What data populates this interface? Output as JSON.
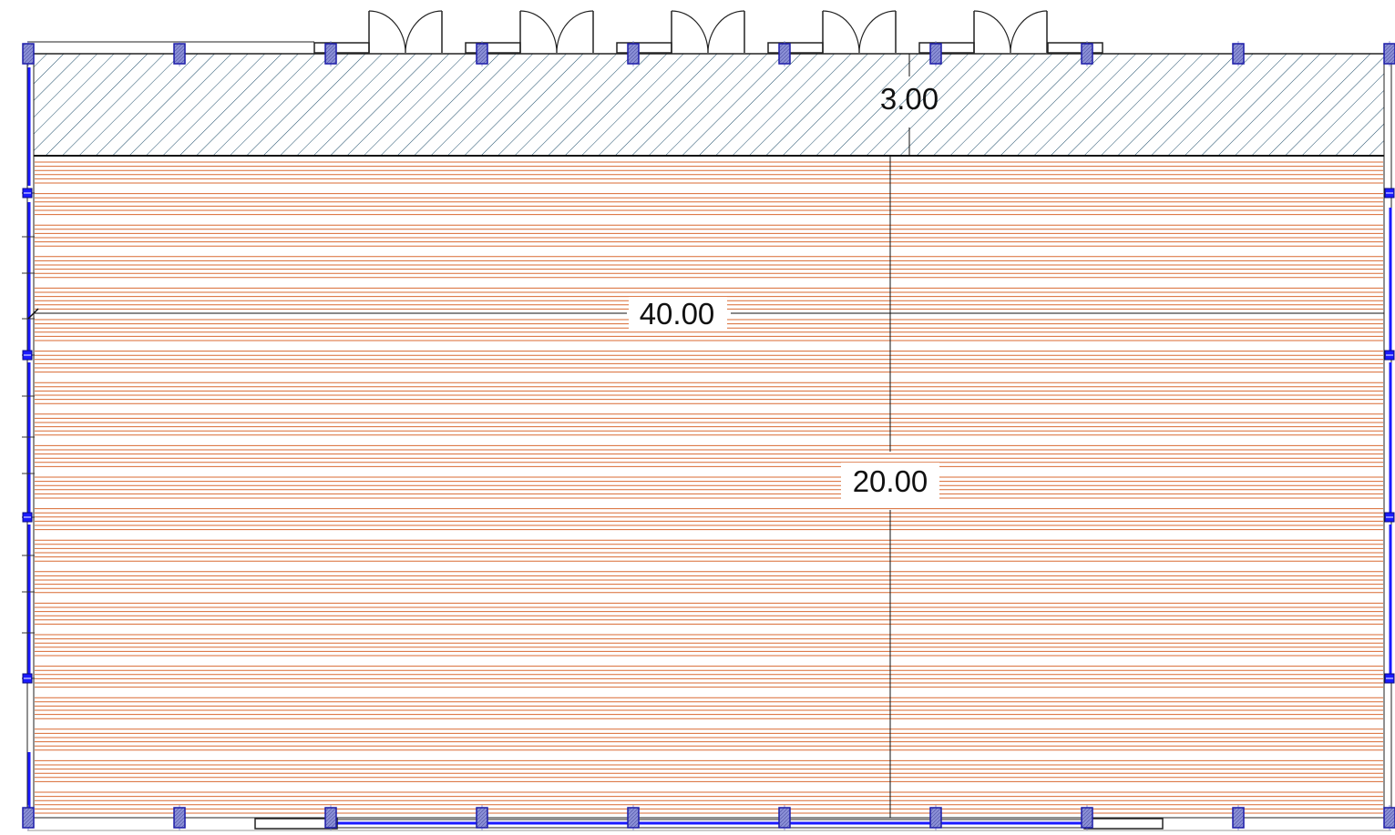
{
  "drawing": {
    "dimensions": [
      {
        "id": "span",
        "label": "40.00"
      },
      {
        "id": "depth",
        "label": "20.00"
      },
      {
        "id": "canopy",
        "label": "3.00"
      }
    ],
    "doors": {
      "count": 5,
      "type": "double-swing"
    },
    "hatch_zone": {
      "pattern": "diagonal",
      "color": "#1f4e6b"
    },
    "floor_zone": {
      "pattern": "horizontal-stripes",
      "color": "#d4581a"
    },
    "glazing_color": "#1a1aff",
    "post_fill": "#8a8fd6",
    "post_count_per_side": 9
  }
}
